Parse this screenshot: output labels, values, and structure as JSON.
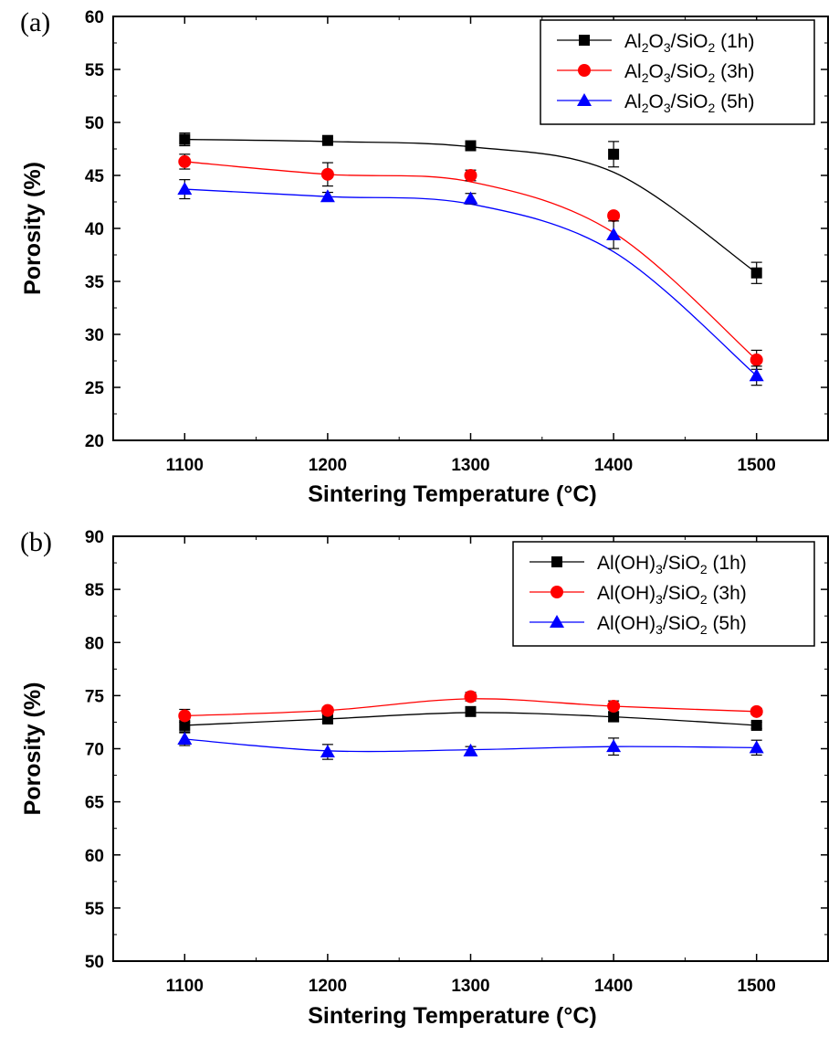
{
  "chart_data": [
    {
      "type": "line",
      "panel_label": "(a)",
      "xlabel": "Sintering Temperature (°C)",
      "ylabel": "Porosity (%)",
      "xlim": [
        1050,
        1550
      ],
      "ylim": [
        20,
        60
      ],
      "x_ticks": [
        1100,
        1200,
        1300,
        1400,
        1500
      ],
      "y_ticks": [
        20,
        25,
        30,
        35,
        40,
        45,
        50,
        55,
        60
      ],
      "legend_position": "top-right",
      "error_bars": true,
      "series": [
        {
          "name": [
            "Al",
            "2",
            "O",
            "3",
            "/SiO",
            "2",
            " (1h)"
          ],
          "color": "#000000",
          "marker": "square",
          "x": [
            1100,
            1200,
            1300,
            1400,
            1500
          ],
          "y": [
            48.4,
            48.3,
            47.8,
            47.0,
            35.8
          ],
          "err": [
            0.6,
            0.2,
            0.2,
            1.2,
            1.0
          ],
          "fit": [
            48.4,
            48.2,
            47.7,
            45.3,
            35.8
          ]
        },
        {
          "name": [
            "Al",
            "2",
            "O",
            "3",
            "/SiO",
            "2",
            " (3h)"
          ],
          "color": "#ff0000",
          "marker": "circle",
          "x": [
            1100,
            1200,
            1300,
            1400,
            1500
          ],
          "y": [
            46.3,
            45.1,
            45.0,
            41.2,
            27.6
          ],
          "err": [
            0.7,
            1.1,
            0.5,
            0.3,
            0.9
          ],
          "fit": [
            46.3,
            45.1,
            44.4,
            39.6,
            27.6
          ]
        },
        {
          "name": [
            "Al",
            "2",
            "O",
            "3",
            "/SiO",
            "2",
            " (5h)"
          ],
          "color": "#0000ff",
          "marker": "triangle",
          "x": [
            1100,
            1200,
            1300,
            1400,
            1500
          ],
          "y": [
            43.7,
            43.0,
            42.8,
            39.4,
            26.1
          ],
          "err": [
            0.9,
            0.4,
            0.5,
            1.3,
            0.9
          ],
          "fit": [
            43.7,
            43.0,
            42.3,
            37.8,
            26.1
          ]
        }
      ]
    },
    {
      "type": "line",
      "panel_label": "(b)",
      "xlabel": "Sintering Temperature (°C)",
      "ylabel": "Porosity (%)",
      "xlim": [
        1050,
        1550
      ],
      "ylim": [
        50,
        90
      ],
      "x_ticks": [
        1100,
        1200,
        1300,
        1400,
        1500
      ],
      "y_ticks": [
        50,
        55,
        60,
        65,
        70,
        75,
        80,
        85,
        90
      ],
      "legend_position": "top-right",
      "error_bars": true,
      "series": [
        {
          "name": [
            "Al(OH)",
            "3",
            "/SiO",
            "2",
            " (1h)"
          ],
          "color": "#000000",
          "marker": "square",
          "x": [
            1100,
            1200,
            1300,
            1400,
            1500
          ],
          "y": [
            72.2,
            72.8,
            73.5,
            73.0,
            72.2
          ],
          "err": [
            0.6,
            0.3,
            0.2,
            0.4,
            0.3
          ],
          "fit": [
            72.2,
            72.8,
            73.4,
            73.0,
            72.2
          ]
        },
        {
          "name": [
            "Al(OH)",
            "3",
            "/SiO",
            "2",
            " (3h)"
          ],
          "color": "#ff0000",
          "marker": "circle",
          "x": [
            1100,
            1200,
            1300,
            1400,
            1500
          ],
          "y": [
            73.1,
            73.6,
            74.9,
            74.0,
            73.5
          ],
          "err": [
            0.6,
            0.3,
            0.4,
            0.5,
            0.3
          ],
          "fit": [
            73.1,
            73.6,
            74.7,
            74.0,
            73.5
          ]
        },
        {
          "name": [
            "Al(OH)",
            "3",
            "/SiO",
            "2",
            " (5h)"
          ],
          "color": "#0000ff",
          "marker": "triangle",
          "x": [
            1100,
            1200,
            1300,
            1400,
            1500
          ],
          "y": [
            70.9,
            69.7,
            69.8,
            70.2,
            70.1
          ],
          "err": [
            0.6,
            0.7,
            0.4,
            0.8,
            0.7
          ],
          "fit": [
            70.9,
            69.8,
            69.9,
            70.2,
            70.1
          ]
        }
      ]
    }
  ]
}
